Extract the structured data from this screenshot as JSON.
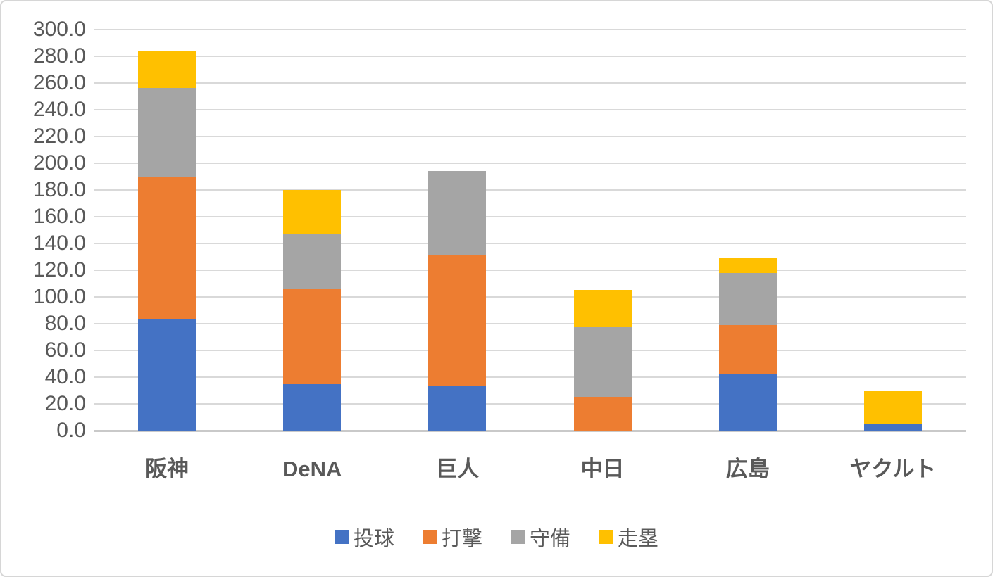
{
  "chart_data": {
    "type": "bar",
    "stacked": true,
    "title": "",
    "xlabel": "",
    "ylabel": "",
    "categories": [
      "阪神",
      "DeNA",
      "巨人",
      "中日",
      "広島",
      "ヤクルト"
    ],
    "series": [
      {
        "name": "投球",
        "color": "#4472C4",
        "values": [
          83.5,
          35.0,
          33.0,
          0.0,
          42.0,
          5.0
        ]
      },
      {
        "name": "打撃",
        "color": "#ED7D31",
        "values": [
          106.5,
          71.0,
          98.0,
          25.5,
          37.0,
          0.0
        ]
      },
      {
        "name": "守備",
        "color": "#A5A5A5",
        "values": [
          66.5,
          41.0,
          63.0,
          52.0,
          39.0,
          0.0
        ]
      },
      {
        "name": "走塁",
        "color": "#FFC000",
        "values": [
          27.0,
          33.0,
          0.0,
          28.0,
          11.0,
          25.0
        ]
      }
    ],
    "totals": [
      283.5,
      180.0,
      194.0,
      105.5,
      129.0,
      30.0
    ],
    "ylim": [
      0,
      300
    ],
    "ytick_step": 20,
    "ytick_labels": [
      "0.0",
      "20.0",
      "40.0",
      "60.0",
      "80.0",
      "100.0",
      "120.0",
      "140.0",
      "160.0",
      "180.0",
      "200.0",
      "220.0",
      "240.0",
      "260.0",
      "280.0",
      "300.0"
    ],
    "grid": true,
    "legend_position": "bottom",
    "colors": {
      "gridline": "#D9D9D9",
      "axis_line": "#C9C9C9",
      "tick_text": "#595959",
      "background": "#FFFFFF",
      "border": "#D6D6D6"
    }
  }
}
